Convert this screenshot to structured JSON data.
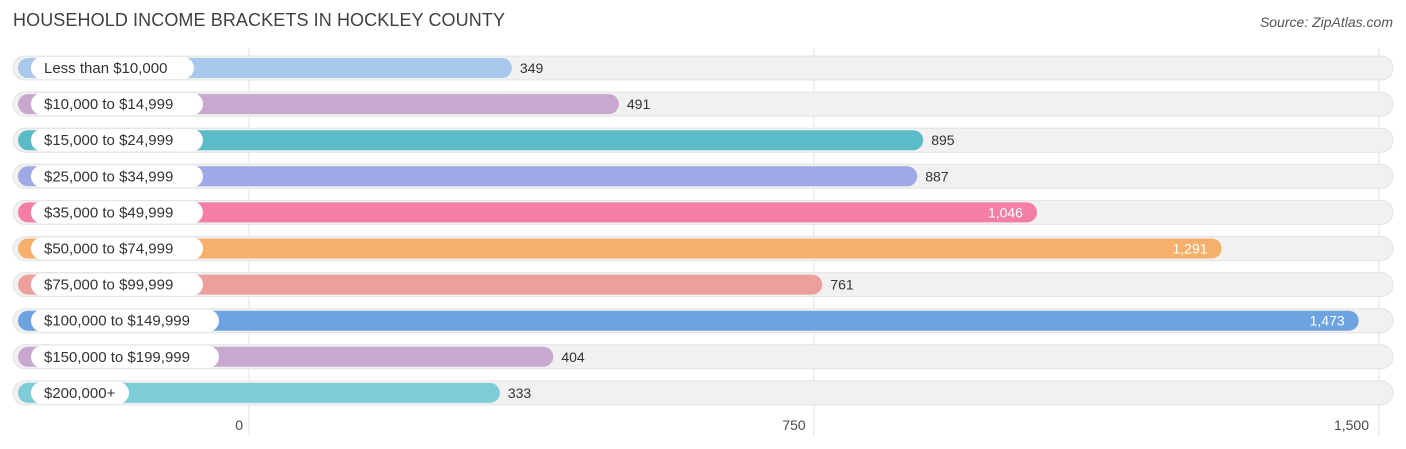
{
  "header": {
    "title": "HOUSEHOLD INCOME BRACKETS IN HOCKLEY COUNTY",
    "source": "Source: ZipAtlas.com"
  },
  "chart_data": {
    "type": "bar",
    "orientation": "horizontal",
    "title": "HOUSEHOLD INCOME BRACKETS IN HOCKLEY COUNTY",
    "xlabel": "",
    "ylabel": "",
    "xlim": [
      0,
      1500
    ],
    "x_ticks": [
      0,
      750,
      1500
    ],
    "x_tick_labels": [
      "0",
      "750",
      "1,500"
    ],
    "grid": true,
    "categories": [
      "Less than $10,000",
      "$10,000 to $14,999",
      "$15,000 to $24,999",
      "$25,000 to $34,999",
      "$35,000 to $49,999",
      "$50,000 to $74,999",
      "$75,000 to $99,999",
      "$100,000 to $149,999",
      "$150,000 to $199,999",
      "$200,000+"
    ],
    "values": [
      349,
      491,
      895,
      887,
      1046,
      1291,
      761,
      1473,
      404,
      333
    ],
    "value_labels": [
      "349",
      "491",
      "895",
      "887",
      "1,046",
      "1,291",
      "761",
      "1,473",
      "404",
      "333"
    ],
    "colors": [
      "#a8c8ec",
      "#c9a8d0",
      "#5bbcc8",
      "#9ea9e6",
      "#f47ea4",
      "#f7b06c",
      "#eba09e",
      "#6da3e0",
      "#c9a8d0",
      "#7ecdd6"
    ],
    "label_inside": [
      false,
      false,
      false,
      false,
      true,
      true,
      false,
      true,
      false,
      false
    ]
  }
}
